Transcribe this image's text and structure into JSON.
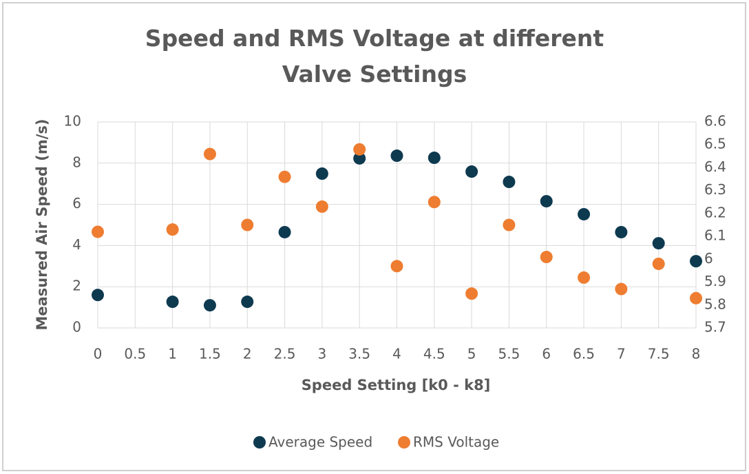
{
  "chart_data": {
    "type": "scatter",
    "title": "Speed and RMS Voltage at different Valve Settings",
    "x_label": "Speed Setting [k0 - k8]",
    "y_label": "Measured Air Speed (m/s)",
    "xlim": [
      0,
      8
    ],
    "xticks": [
      0,
      0.5,
      1,
      1.5,
      2,
      2.5,
      3,
      3.5,
      4,
      4.5,
      5,
      5.5,
      6,
      6.5,
      7,
      7.5,
      8
    ],
    "ylim": [
      0,
      10
    ],
    "yticks": [
      0,
      2,
      4,
      6,
      8,
      10
    ],
    "y2lim": [
      5.7,
      6.6
    ],
    "y2ticks": [
      5.7,
      5.8,
      5.9,
      6,
      6.1,
      6.2,
      6.3,
      6.4,
      6.5,
      6.6
    ],
    "grid": true,
    "legend": "bottom",
    "series": [
      {
        "name": "Average Speed",
        "color": "#0e3a50",
        "x": [
          0,
          1,
          1.5,
          2,
          2.5,
          3,
          3.5,
          4,
          4.5,
          5,
          5.5,
          6,
          6.5,
          7,
          7.5,
          8
        ],
        "values": [
          1.6,
          1.27,
          1.1,
          1.27,
          4.65,
          7.49,
          8.23,
          8.36,
          8.26,
          7.59,
          7.09,
          6.15,
          5.52,
          4.65,
          4.11,
          3.24
        ]
      },
      {
        "name": "RMS Voltage",
        "color": "#ee7d31",
        "axis": "y2",
        "x": [
          0,
          1,
          1.5,
          2,
          2.5,
          3,
          3.5,
          4,
          4.5,
          5,
          5.5,
          6,
          6.5,
          7,
          7.5,
          8
        ],
        "values": [
          6.12,
          6.13,
          6.46,
          6.15,
          6.36,
          6.23,
          6.48,
          5.97,
          6.25,
          5.85,
          6.15,
          6.01,
          5.92,
          5.87,
          5.98,
          5.83
        ]
      }
    ]
  }
}
